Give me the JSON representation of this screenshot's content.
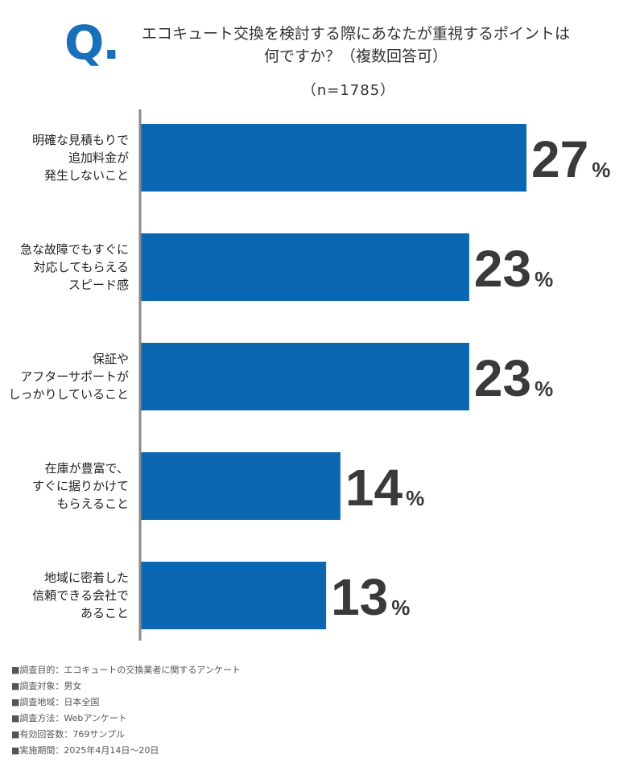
{
  "header": {
    "q_label": "Q.",
    "title_lines": [
      "エコキュート交換を検討する際にあなたが重視するポイントは",
      "何ですか？（複数回答可）"
    ],
    "sample_size": "（n=1785）"
  },
  "chart_data": {
    "type": "bar",
    "orientation": "horizontal",
    "categories": [
      [
        "明確な見積もりで",
        "追加料金が",
        "発生しないこと"
      ],
      [
        "急な故障でもすぐに",
        "対応してもらえる",
        "スピード感"
      ],
      [
        "保証や",
        "アフターサポートが",
        "しっかりしていること"
      ],
      [
        "在庫が豊富で、",
        "すぐに据りかけて",
        "もらえること"
      ],
      [
        "地域に密着した",
        "信頼できる会社で",
        "あること"
      ]
    ],
    "values": [
      27,
      23,
      23,
      14,
      13
    ],
    "value_unit": "%",
    "xlim": [
      0,
      27
    ],
    "bar_color": "#0b67b2",
    "axis_color": "#888888",
    "grid": false,
    "legend": "none"
  },
  "notes": [
    "■調査目的：エコキュートの交換業者に関するアンケート",
    "■調査対象：男女",
    "■調査地域：日本全国",
    "■調査方法：Webアンケート",
    "■有効回答数：769サンプル",
    "■実施期間：2025年4月14日〜20日"
  ],
  "colors": {
    "accent": "#1a6fbb",
    "text": "#333333"
  }
}
